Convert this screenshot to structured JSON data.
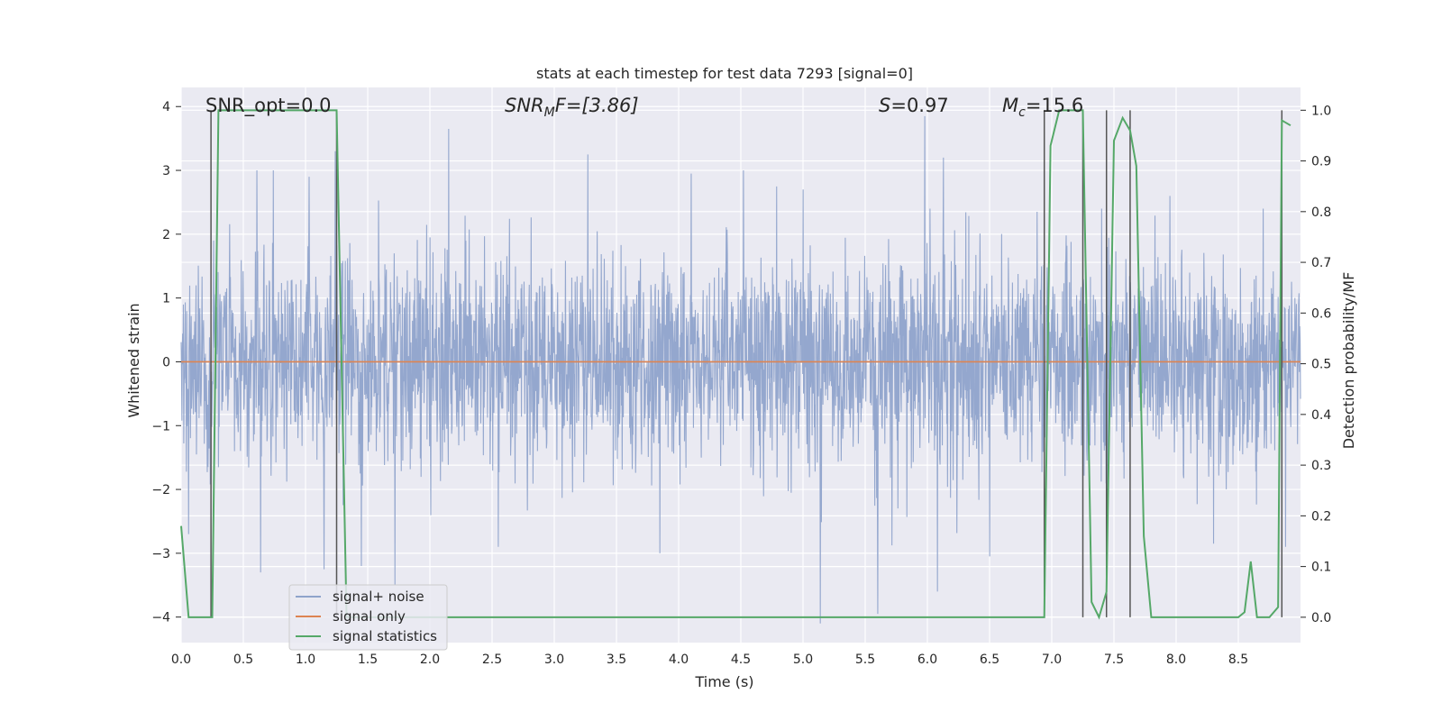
{
  "chart_data": {
    "type": "line",
    "title": "stats at each timestep for test data 7293 [signal=0]",
    "xlabel": "Time (s)",
    "ylabel": "Whitened strain",
    "ylabel_right": "Detection probability/MF",
    "xlim": [
      0.0,
      9.0
    ],
    "ylim": [
      -4.4,
      4.3
    ],
    "ylim_right": [
      -0.05,
      1.045
    ],
    "x_ticks": [
      "0.0",
      "0.5",
      "1.0",
      "1.5",
      "2.0",
      "2.5",
      "3.0",
      "3.5",
      "4.0",
      "4.5",
      "5.0",
      "5.5",
      "6.0",
      "6.5",
      "7.0",
      "7.5",
      "8.0",
      "8.5"
    ],
    "y_ticks": [
      "4",
      "3",
      "2",
      "1",
      "0",
      "−1",
      "−2",
      "−3",
      "−4"
    ],
    "y_ticks_right": [
      "1.0",
      "0.9",
      "0.8",
      "0.7",
      "0.6",
      "0.5",
      "0.4",
      "0.3",
      "0.2",
      "0.1",
      "0.0"
    ],
    "grid": true,
    "legend_position": "lower-left",
    "annotations": {
      "snr_opt": "SNR_opt=0.0",
      "snr_mf_prefix": "SNR",
      "snr_mf_sub": "M",
      "snr_mf_suffix": "F=[3.86]",
      "s_prefix": "S",
      "s_value": "=0.97",
      "mc_prefix": "M",
      "mc_sub": "c",
      "mc_value": "=15.6"
    },
    "series": [
      {
        "name": "signal+ noise",
        "color": "#8fa3cb",
        "kind": "noise",
        "typical_amplitude": 1.6,
        "peak_values": [
          {
            "x": 0.26,
            "y": 1.9
          },
          {
            "x": 0.61,
            "y": 3.0
          },
          {
            "x": 0.74,
            "y": 3.0
          },
          {
            "x": 1.03,
            "y": 2.9
          },
          {
            "x": 1.24,
            "y": 3.3
          },
          {
            "x": 2.15,
            "y": 3.65
          },
          {
            "x": 3.27,
            "y": 3.25
          },
          {
            "x": 3.45,
            "y": 2.6
          },
          {
            "x": 4.1,
            "y": 2.95
          },
          {
            "x": 4.52,
            "y": 3.0
          },
          {
            "x": 5.0,
            "y": 2.7
          },
          {
            "x": 5.6,
            "y": 3.55
          },
          {
            "x": 5.98,
            "y": 3.85
          },
          {
            "x": 6.13,
            "y": 3.2
          },
          {
            "x": 7.4,
            "y": 2.4
          },
          {
            "x": 7.95,
            "y": 2.6
          },
          {
            "x": 8.7,
            "y": 2.4
          }
        ],
        "trough_values": [
          {
            "x": 0.06,
            "y": -2.7
          },
          {
            "x": 0.64,
            "y": -3.3
          },
          {
            "x": 1.15,
            "y": -3.25
          },
          {
            "x": 1.45,
            "y": -3.2
          },
          {
            "x": 1.72,
            "y": -3.5
          },
          {
            "x": 2.55,
            "y": -2.9
          },
          {
            "x": 3.45,
            "y": -1.0
          },
          {
            "x": 3.85,
            "y": -3.0
          },
          {
            "x": 5.14,
            "y": -4.1
          },
          {
            "x": 5.6,
            "y": -3.95
          },
          {
            "x": 6.08,
            "y": -3.6
          },
          {
            "x": 6.5,
            "y": -3.05
          },
          {
            "x": 7.45,
            "y": -2.6
          },
          {
            "x": 8.3,
            "y": -2.85
          },
          {
            "x": 8.88,
            "y": -2.9
          }
        ]
      },
      {
        "name": "signal only",
        "color": "#dd8452",
        "x": [
          0.0,
          9.0
        ],
        "y": [
          0.0,
          0.0
        ]
      },
      {
        "name": "signal statistics",
        "color": "#55a868",
        "axis": "right",
        "x": [
          0.0,
          0.06,
          0.25,
          0.3,
          1.25,
          1.33,
          6.94,
          6.99,
          7.06,
          7.25,
          7.32,
          7.38,
          7.44,
          7.5,
          7.57,
          7.63,
          7.68,
          7.74,
          7.8,
          8.5,
          8.55,
          8.6,
          8.65,
          8.75,
          8.82,
          8.85,
          8.92
        ],
        "y": [
          0.18,
          0.0,
          0.0,
          1.0,
          1.0,
          0.0,
          0.0,
          0.93,
          1.0,
          1.0,
          0.03,
          0.0,
          0.05,
          0.94,
          0.985,
          0.96,
          0.89,
          0.16,
          0.0,
          0.0,
          0.01,
          0.11,
          0.0,
          0.0,
          0.02,
          0.98,
          0.97
        ]
      }
    ],
    "vertical_markers": {
      "color": "#555555",
      "x": [
        0.24,
        1.25,
        6.94,
        7.25,
        7.44,
        7.63,
        8.85
      ]
    }
  }
}
